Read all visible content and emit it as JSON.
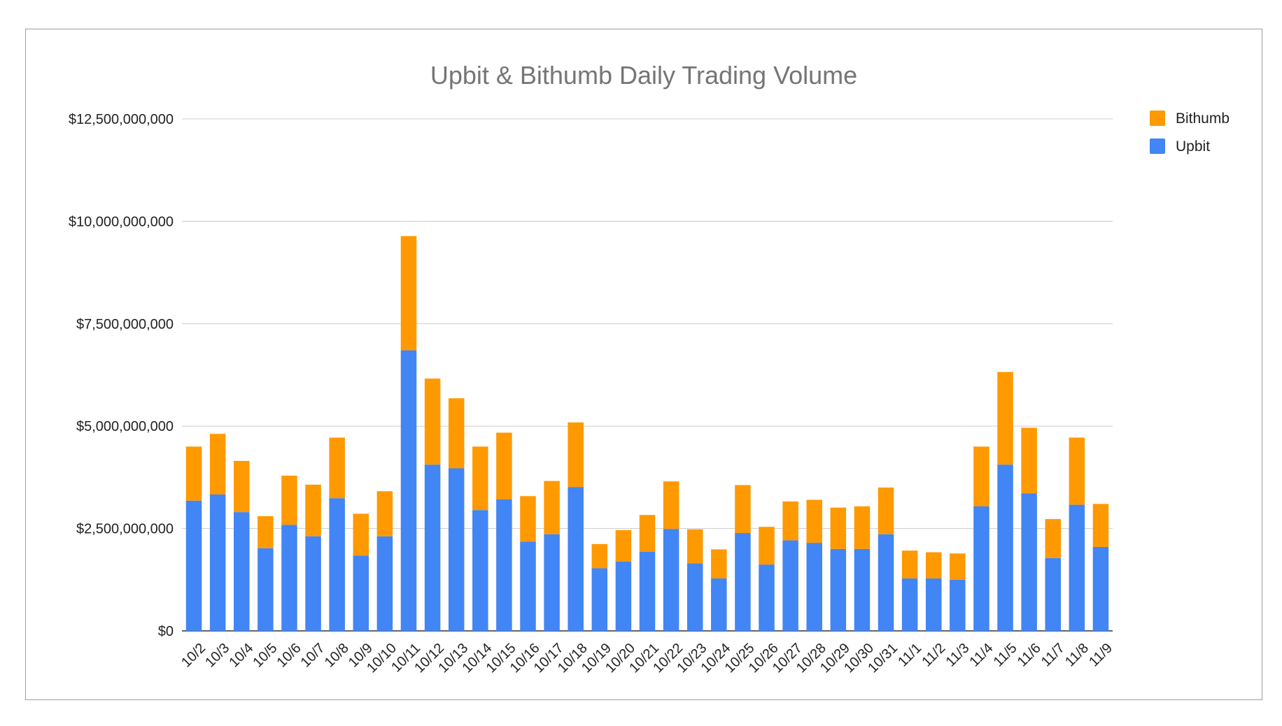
{
  "chart_data": {
    "type": "bar",
    "stacked": true,
    "title": "Upbit & Bithumb Daily Trading Volume",
    "xlabel": "",
    "ylabel": "",
    "ylim": [
      0,
      12500000000
    ],
    "yticks": [
      0,
      2500000000,
      5000000000,
      7500000000,
      10000000000,
      12500000000
    ],
    "ytick_labels": [
      "$0",
      "$2,500,000,000",
      "$5,000,000,000",
      "$7,500,000,000",
      "$10,000,000,000",
      "$12,500,000,000"
    ],
    "grid": true,
    "legend_position": "right",
    "categories": [
      "10/2",
      "10/3",
      "10/4",
      "10/5",
      "10/6",
      "10/7",
      "10/8",
      "10/9",
      "10/10",
      "10/11",
      "10/12",
      "10/13",
      "10/14",
      "10/15",
      "10/16",
      "10/17",
      "10/18",
      "10/19",
      "10/20",
      "10/21",
      "10/22",
      "10/23",
      "10/24",
      "10/25",
      "10/26",
      "10/27",
      "10/28",
      "10/29",
      "10/30",
      "10/31",
      "11/1",
      "11/2",
      "11/3",
      "11/4",
      "11/5",
      "11/6",
      "11/7",
      "11/8",
      "11/9"
    ],
    "series": [
      {
        "name": "Upbit",
        "color": "#4285f4",
        "values": [
          3180000000,
          3330000000,
          2900000000,
          2020000000,
          2590000000,
          2310000000,
          3240000000,
          1840000000,
          2310000000,
          6850000000,
          4060000000,
          3970000000,
          2950000000,
          3210000000,
          2180000000,
          2360000000,
          3510000000,
          1530000000,
          1690000000,
          1930000000,
          2490000000,
          1650000000,
          1280000000,
          2390000000,
          1620000000,
          2210000000,
          2150000000,
          2000000000,
          2000000000,
          2360000000,
          1280000000,
          1280000000,
          1250000000,
          3040000000,
          4060000000,
          3360000000,
          1780000000,
          3080000000,
          2050000000
        ]
      },
      {
        "name": "Bithumb",
        "color": "#ff9900",
        "values": [
          1320000000,
          1480000000,
          1250000000,
          780000000,
          1200000000,
          1260000000,
          1480000000,
          1020000000,
          1100000000,
          2790000000,
          2100000000,
          1710000000,
          1550000000,
          1630000000,
          1110000000,
          1300000000,
          1580000000,
          590000000,
          770000000,
          900000000,
          1160000000,
          830000000,
          710000000,
          1170000000,
          920000000,
          950000000,
          1050000000,
          1010000000,
          1040000000,
          1140000000,
          680000000,
          640000000,
          640000000,
          1460000000,
          2260000000,
          1600000000,
          950000000,
          1640000000,
          1050000000
        ]
      }
    ],
    "legend_order": [
      "Bithumb",
      "Upbit"
    ]
  }
}
